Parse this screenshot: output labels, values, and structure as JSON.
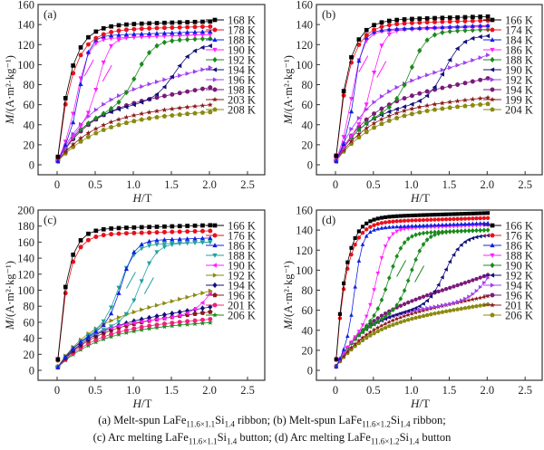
{
  "figure": {
    "caption_lines": [
      [
        {
          "t": "(a) Melt-spun LaFe"
        },
        {
          "sub": "11.6×1.1"
        },
        {
          "t": "Si"
        },
        {
          "sub": "1.4"
        },
        {
          "t": " ribbon; (b) Melt-spun LaFe"
        },
        {
          "sub": "11.6×1.2"
        },
        {
          "t": "Si"
        },
        {
          "sub": "1.4"
        },
        {
          "t": " ribbon;"
        }
      ],
      [
        {
          "t": "(c) Arc melting LaFe"
        },
        {
          "sub": "11.6×1.1"
        },
        {
          "t": "Si"
        },
        {
          "sub": "1.4"
        },
        {
          "t": " button; (d) Arc melting LaFe"
        },
        {
          "sub": "11.6×1.2"
        },
        {
          "t": "Si"
        },
        {
          "sub": "1.4"
        },
        {
          "t": " button"
        }
      ]
    ]
  },
  "colors": {
    "black": "#000000",
    "red": "#e8101c",
    "blue": "#1020e0",
    "magenta": "#ff20ff",
    "green": "#1a8a1a",
    "navy": "#10107a",
    "violet": "#a040f0",
    "purple": "#7a1a7a",
    "darkred": "#8a1a1a",
    "olive": "#8a8a10",
    "teal": "#20a0a0",
    "pink": "#f0207a"
  },
  "chart_data": [
    {
      "type": "line",
      "panel_label": "(a)",
      "xlabel_italic": "H",
      "xlabel_rest": "/T",
      "ylabel": "M/(A·m²·kg⁻¹)",
      "xlim": [
        -0.25,
        2.75
      ],
      "ylim": [
        -10,
        160
      ],
      "xticks": [
        0,
        0.5,
        1.0,
        1.5,
        2.0,
        2.5
      ],
      "xtick_labels": [
        "0",
        "0.5",
        "1.0",
        "1.5",
        "2.0",
        "2.5"
      ],
      "yticks": [
        0,
        20,
        40,
        60,
        80,
        100,
        120,
        140,
        160
      ],
      "legend": "right",
      "hysteresis_series": "190 K",
      "series": [
        {
          "name": "168 K",
          "color": "black",
          "marker": "square",
          "msat": 143,
          "hk": 0.22,
          "slope": 2,
          "shape": "sat"
        },
        {
          "name": "178 K",
          "color": "red",
          "marker": "circle",
          "msat": 138,
          "hk": 0.24,
          "slope": 2,
          "shape": "sat"
        },
        {
          "name": "188 K",
          "color": "blue",
          "marker": "triangle-up",
          "msat": 131,
          "hk": 0.2,
          "slope": 2,
          "shape": "meta",
          "hc": 0.3,
          "w": 0.25
        },
        {
          "name": "190 K",
          "color": "magenta",
          "marker": "triangle-down",
          "msat": 128,
          "hk": 0.15,
          "slope": 2,
          "shape": "meta",
          "hc": 0.55,
          "w": 0.3
        },
        {
          "name": "192 K",
          "color": "green",
          "marker": "diamond",
          "msat": 124,
          "hk": 0.2,
          "slope": 2,
          "shape": "meta",
          "hc": 1.05,
          "w": 0.45
        },
        {
          "name": "194 K",
          "color": "navy",
          "marker": "triangle-left",
          "msat": 118,
          "hk": 0.2,
          "slope": 2,
          "shape": "meta",
          "hc": 1.55,
          "w": 0.5
        },
        {
          "name": "196 K",
          "color": "violet",
          "marker": "triangle-right",
          "msat": 95,
          "hk": 0.25,
          "slope": 18,
          "shape": "para"
        },
        {
          "name": "198 K",
          "color": "purple",
          "marker": "circle",
          "msat": 75,
          "hk": 0.25,
          "slope": 12,
          "shape": "para"
        },
        {
          "name": "203 K",
          "color": "darkred",
          "marker": "star",
          "msat": 58,
          "hk": 0.28,
          "slope": 5,
          "shape": "para"
        },
        {
          "name": "208 K",
          "color": "olive",
          "marker": "pentagon",
          "msat": 51,
          "hk": 0.3,
          "slope": 3,
          "shape": "para"
        }
      ]
    },
    {
      "type": "line",
      "panel_label": "(b)",
      "xlabel_italic": "H",
      "xlabel_rest": "/T",
      "ylabel": "M/(A·m²·kg⁻¹)",
      "xlim": [
        -0.25,
        2.75
      ],
      "ylim": [
        -10,
        160
      ],
      "xticks": [
        0,
        0.5,
        1.0,
        1.5,
        2.0,
        2.5
      ],
      "xtick_labels": [
        "0",
        "0.5",
        "1.0",
        "1.5",
        "2.0",
        "2.5"
      ],
      "yticks": [
        0,
        20,
        40,
        60,
        80,
        100,
        120,
        140,
        160
      ],
      "legend": "right",
      "hysteresis_series": "186 K",
      "series": [
        {
          "name": "166 K",
          "color": "black",
          "marker": "square",
          "msat": 148,
          "hk": 0.2,
          "slope": 2,
          "shape": "sat"
        },
        {
          "name": "174 K",
          "color": "red",
          "marker": "circle",
          "msat": 144,
          "hk": 0.21,
          "slope": 2,
          "shape": "sat"
        },
        {
          "name": "184 K",
          "color": "blue",
          "marker": "triangle-up",
          "msat": 137,
          "hk": 0.18,
          "slope": 2,
          "shape": "meta",
          "hc": 0.25,
          "w": 0.2
        },
        {
          "name": "186 K",
          "color": "magenta",
          "marker": "triangle-down",
          "msat": 136,
          "hk": 0.15,
          "slope": 2,
          "shape": "meta",
          "hc": 0.5,
          "w": 0.28
        },
        {
          "name": "188 K",
          "color": "green",
          "marker": "diamond",
          "msat": 133,
          "hk": 0.2,
          "slope": 2,
          "shape": "meta",
          "hc": 1.0,
          "w": 0.42
        },
        {
          "name": "190 K",
          "color": "navy",
          "marker": "triangle-left",
          "msat": 127,
          "hk": 0.2,
          "slope": 2,
          "shape": "meta",
          "hc": 1.45,
          "w": 0.45
        },
        {
          "name": "192 K",
          "color": "violet",
          "marker": "triangle-right",
          "msat": 107,
          "hk": 0.22,
          "slope": 25,
          "shape": "para"
        },
        {
          "name": "194 K",
          "color": "purple",
          "marker": "circle",
          "msat": 84,
          "hk": 0.24,
          "slope": 14,
          "shape": "para"
        },
        {
          "name": "199 K",
          "color": "darkred",
          "marker": "star",
          "msat": 65,
          "hk": 0.26,
          "slope": 6,
          "shape": "para"
        },
        {
          "name": "204 K",
          "color": "olive",
          "marker": "pentagon",
          "msat": 59,
          "hk": 0.28,
          "slope": 4,
          "shape": "para"
        }
      ]
    },
    {
      "type": "line",
      "panel_label": "(c)",
      "xlabel_italic": "H",
      "xlabel_rest": "/T",
      "ylabel": "M/(A·m²·kg⁻¹)",
      "xlim": [
        -0.25,
        2.75
      ],
      "ylim": [
        -10,
        200
      ],
      "xticks": [
        0,
        0.5,
        1.0,
        1.5,
        2.0,
        2.5
      ],
      "xtick_labels": [
        "0",
        "0.5",
        "1.0",
        "1.5",
        "2.0",
        "2.5"
      ],
      "yticks": [
        0,
        20,
        40,
        60,
        80,
        100,
        120,
        140,
        160,
        180,
        200
      ],
      "legend": "right",
      "hysteresis_series": "188 K",
      "series": [
        {
          "name": "166 K",
          "color": "black",
          "marker": "square",
          "msat": 181,
          "hk": 0.16,
          "slope": 4,
          "shape": "sat"
        },
        {
          "name": "176 K",
          "color": "red",
          "marker": "circle",
          "msat": 174,
          "hk": 0.17,
          "slope": 4,
          "shape": "sat"
        },
        {
          "name": "186 K",
          "color": "blue",
          "marker": "triangle-up",
          "msat": 163,
          "hk": 0.25,
          "slope": 2,
          "shape": "meta",
          "hc": 0.85,
          "w": 0.35
        },
        {
          "name": "188 K",
          "color": "teal",
          "marker": "triangle-down",
          "msat": 158,
          "hk": 0.25,
          "slope": 2,
          "shape": "meta",
          "hc": 1.1,
          "w": 0.4
        },
        {
          "name": "190 K",
          "color": "magenta",
          "marker": "triangle-left",
          "msat": 143,
          "hk": 0.25,
          "slope": 2,
          "shape": "meta",
          "hc": 2.1,
          "w": 0.55
        },
        {
          "name": "192 K",
          "color": "olive",
          "marker": "triangle-right",
          "msat": 97,
          "hk": 0.25,
          "slope": 25,
          "shape": "para"
        },
        {
          "name": "194 K",
          "color": "navy",
          "marker": "diamond",
          "msat": 77,
          "hk": 0.26,
          "slope": 14,
          "shape": "para"
        },
        {
          "name": "196 K",
          "color": "darkred",
          "marker": "pentagon",
          "msat": 71,
          "hk": 0.27,
          "slope": 10,
          "shape": "para"
        },
        {
          "name": "201 K",
          "color": "pink",
          "marker": "circle",
          "msat": 62,
          "hk": 0.28,
          "slope": 6,
          "shape": "para"
        },
        {
          "name": "206 K",
          "color": "green",
          "marker": "star",
          "msat": 58,
          "hk": 0.3,
          "slope": 4,
          "shape": "para"
        }
      ]
    },
    {
      "type": "line",
      "panel_label": "(d)",
      "xlabel_italic": "H",
      "xlabel_rest": "/T",
      "ylabel": "M/(A·m²·kg⁻¹)",
      "xlim": [
        -0.25,
        2.75
      ],
      "ylim": [
        -10,
        160
      ],
      "xticks": [
        0,
        0.5,
        1.0,
        1.5,
        2.0,
        2.5
      ],
      "xtick_labels": [
        "0",
        "0.5",
        "1.0",
        "1.5",
        "2.0",
        "2.5"
      ],
      "yticks": [
        0,
        20,
        40,
        60,
        80,
        100,
        120,
        140,
        160
      ],
      "legend": "right",
      "hysteresis_series": "190 K",
      "dense": true,
      "series": [
        {
          "name": "166 K",
          "color": "black",
          "marker": "square",
          "msat": 157,
          "hk": 0.17,
          "slope": 6,
          "shape": "sat"
        },
        {
          "name": "176 K",
          "color": "red",
          "marker": "circle",
          "msat": 152,
          "hk": 0.18,
          "slope": 6,
          "shape": "sat"
        },
        {
          "name": "186 K",
          "color": "blue",
          "marker": "triangle-up",
          "msat": 145,
          "hk": 0.15,
          "slope": 6,
          "shape": "meta",
          "hc": 0.25,
          "w": 0.2
        },
        {
          "name": "188 K",
          "color": "magenta",
          "marker": "triangle-down",
          "msat": 143,
          "hk": 0.2,
          "slope": 4,
          "shape": "meta",
          "hc": 0.55,
          "w": 0.3
        },
        {
          "name": "190 K",
          "color": "green",
          "marker": "diamond",
          "msat": 138,
          "hk": 0.2,
          "slope": 4,
          "shape": "meta",
          "hc": 1.0,
          "w": 0.38
        },
        {
          "name": "192 K",
          "color": "navy",
          "marker": "triangle-left",
          "msat": 133,
          "hk": 0.25,
          "slope": 4,
          "shape": "meta",
          "hc": 1.45,
          "w": 0.45
        },
        {
          "name": "194 K",
          "color": "violet",
          "marker": "triangle-right",
          "msat": 120,
          "hk": 0.25,
          "slope": 4,
          "shape": "meta",
          "hc": 2.05,
          "w": 0.55
        },
        {
          "name": "196 K",
          "color": "purple",
          "marker": "circle",
          "msat": 93,
          "hk": 0.25,
          "slope": 25,
          "shape": "para"
        },
        {
          "name": "201 K",
          "color": "darkred",
          "marker": "star",
          "msat": 72,
          "hk": 0.27,
          "slope": 14,
          "shape": "para"
        },
        {
          "name": "206 K",
          "color": "olive",
          "marker": "pentagon",
          "msat": 64,
          "hk": 0.28,
          "slope": 10,
          "shape": "para"
        }
      ]
    }
  ]
}
